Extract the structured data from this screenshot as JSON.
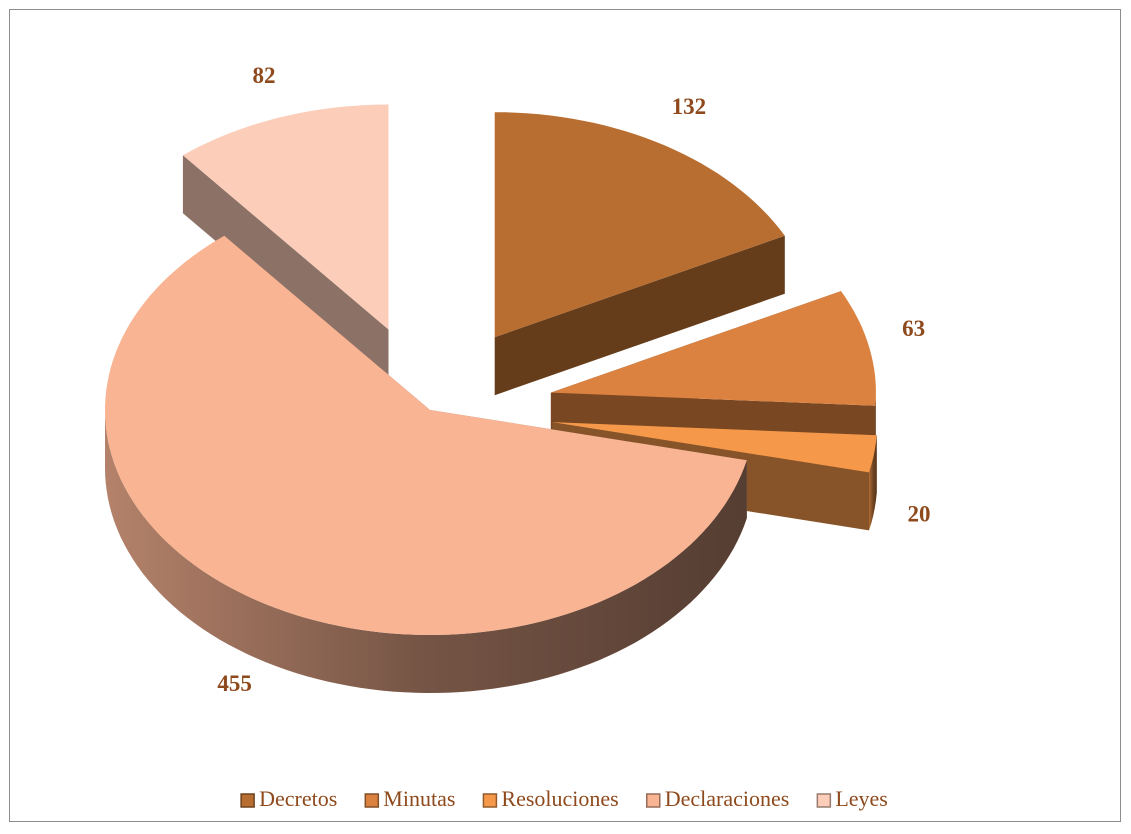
{
  "chart_data": {
    "type": "pie3d",
    "categories": [
      "Decretos",
      "Minutas",
      "Resoluciones",
      "Declaraciones",
      "Leyes"
    ],
    "values": [
      132,
      63,
      20,
      455,
      82
    ],
    "colors": [
      "#b96e31",
      "#dc8240",
      "#f5984a",
      "#f9b493",
      "#fccdb9"
    ],
    "legend": "bottom"
  }
}
